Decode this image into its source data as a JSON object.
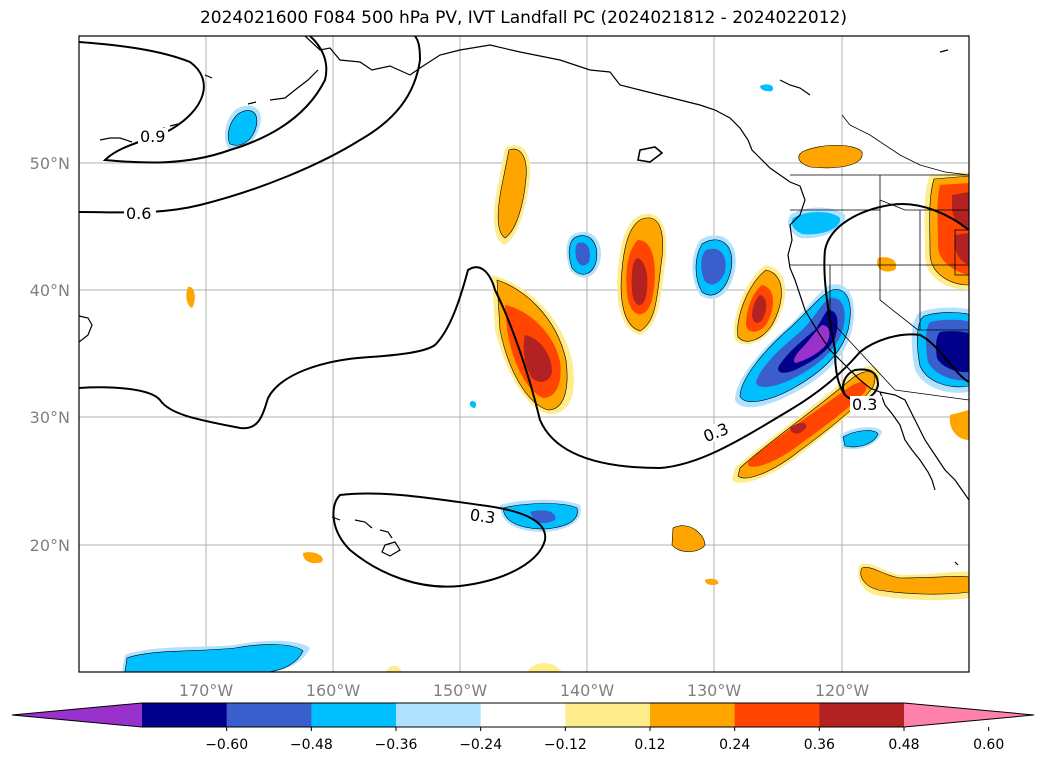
{
  "title": "2024021600 F084 500 hPa PV, IVT Landfall PC (2024021812 - 2024022012)",
  "map": {
    "lon_labels": [
      "170°W",
      "160°W",
      "150°W",
      "140°W",
      "130°W",
      "120°W"
    ],
    "lat_labels": [
      "50°N",
      "40°N",
      "30°N",
      "20°N"
    ],
    "contour_labels": [
      {
        "text": "0.9"
      },
      {
        "text": "0.6"
      },
      {
        "text": "0.3"
      },
      {
        "text": "0.3"
      },
      {
        "text": "0.3"
      }
    ]
  },
  "colorbar": {
    "ticks": [
      "−0.60",
      "−0.48",
      "−0.36",
      "−0.24",
      "−0.12",
      "0.12",
      "0.24",
      "0.36",
      "0.48",
      "0.60"
    ],
    "colors": [
      "#9932cc",
      "#00008b",
      "#3a5fcd",
      "#00bfff",
      "#b0e2ff",
      "#ffffff",
      "#ffec8b",
      "#ffa500",
      "#ff4500",
      "#b22222",
      "#ff82ab"
    ]
  }
}
